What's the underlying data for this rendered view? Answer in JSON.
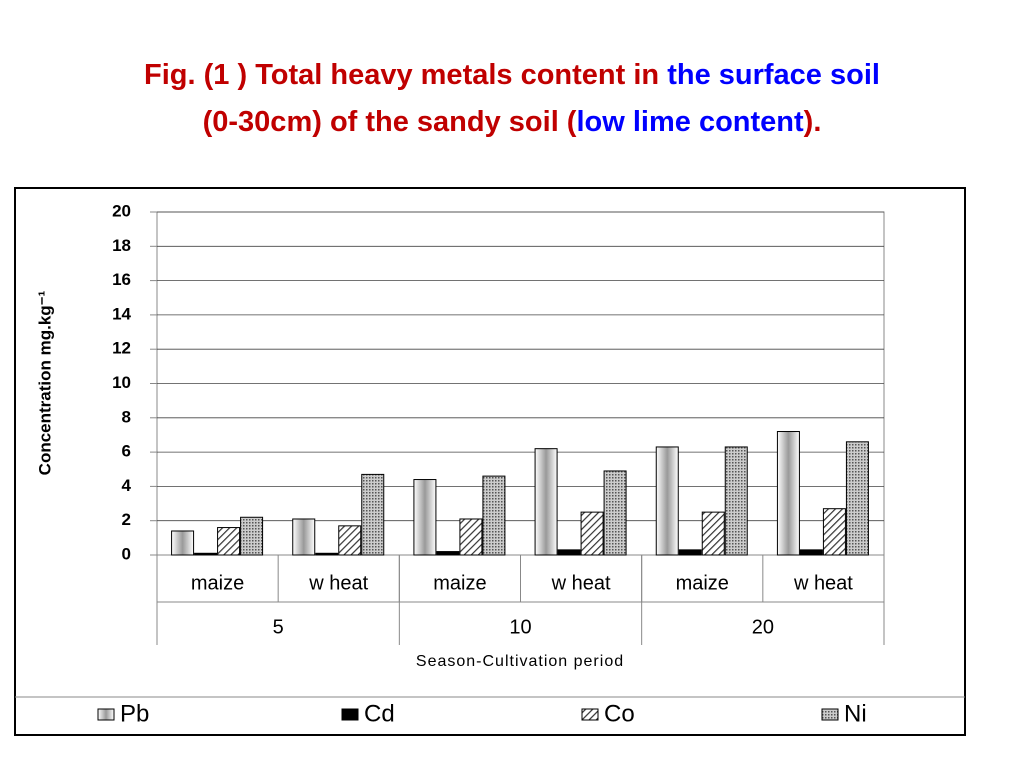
{
  "chart_data": {
    "type": "bar",
    "title_parts": [
      {
        "text": "Fig. (1 ) Total heavy metals content in ",
        "color": "#c00000"
      },
      {
        "text": "the surface soil",
        "color": "#0000ff"
      },
      {
        "text": "(0-30cm) of the sandy soil (",
        "color": "#c00000"
      },
      {
        "text": "low lime content",
        "color": "#0000ff"
      },
      {
        "text": ").",
        "color": "#c00000"
      }
    ],
    "y_label": "Concentration mg.kg⁻¹",
    "x_label": "Season-Cultivation period",
    "categories": [
      "maize",
      "w heat",
      "maize",
      "w heat",
      "maize",
      "w heat"
    ],
    "groups": [
      "5",
      "10",
      "20"
    ],
    "series": [
      {
        "name": "Pb",
        "color": "#999999",
        "pattern": "gradient",
        "values": [
          1.4,
          2.1,
          4.4,
          6.2,
          6.3,
          7.2
        ]
      },
      {
        "name": "Cd",
        "color": "#000000",
        "pattern": "solid",
        "values": [
          0.1,
          0.1,
          0.2,
          0.3,
          0.3,
          0.3
        ]
      },
      {
        "name": "Co",
        "color": "#333333",
        "pattern": "hatch",
        "values": [
          1.6,
          1.7,
          2.1,
          2.5,
          2.5,
          2.7
        ]
      },
      {
        "name": "Ni",
        "color": "#555555",
        "pattern": "dots",
        "values": [
          2.2,
          4.7,
          4.6,
          4.9,
          6.3,
          6.6
        ]
      }
    ],
    "ylim": [
      0,
      20
    ],
    "yticks": [
      0,
      2,
      4,
      6,
      8,
      10,
      12,
      14,
      16,
      18,
      20
    ],
    "grid": true,
    "legend": "bottom"
  }
}
